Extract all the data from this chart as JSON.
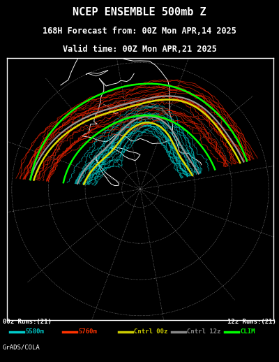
{
  "title_line1": "NCEP ENSEMBLE 500mb Z",
  "title_line2": "168H Forecast from: 00Z Mon APR,14 2025",
  "title_line3": "Valid time: 00Z Mon APR,21 2025",
  "footer_left": "GrADS/COLA",
  "legend_left": "00z Runs:(21)",
  "legend_right": "12z Runs:(21)",
  "legend_items": [
    {
      "label": "5580m",
      "color": "#00CCCC",
      "lw": 2.0
    },
    {
      "label": "5760m",
      "color": "#FF3300",
      "lw": 2.0
    },
    {
      "label": "Cntrl 00z",
      "color": "#CCCC00",
      "lw": 2.0
    },
    {
      "label": "Cntrl 12z",
      "color": "#888888",
      "lw": 2.0
    },
    {
      "label": "CLIM",
      "color": "#00FF00",
      "lw": 2.0
    }
  ],
  "bg_color": "#000000",
  "title_color": "#ffffff",
  "title_fontsize": 11,
  "subtitle_fontsize": 8.5,
  "figsize": [
    4.0,
    5.18
  ],
  "dpi": 100
}
